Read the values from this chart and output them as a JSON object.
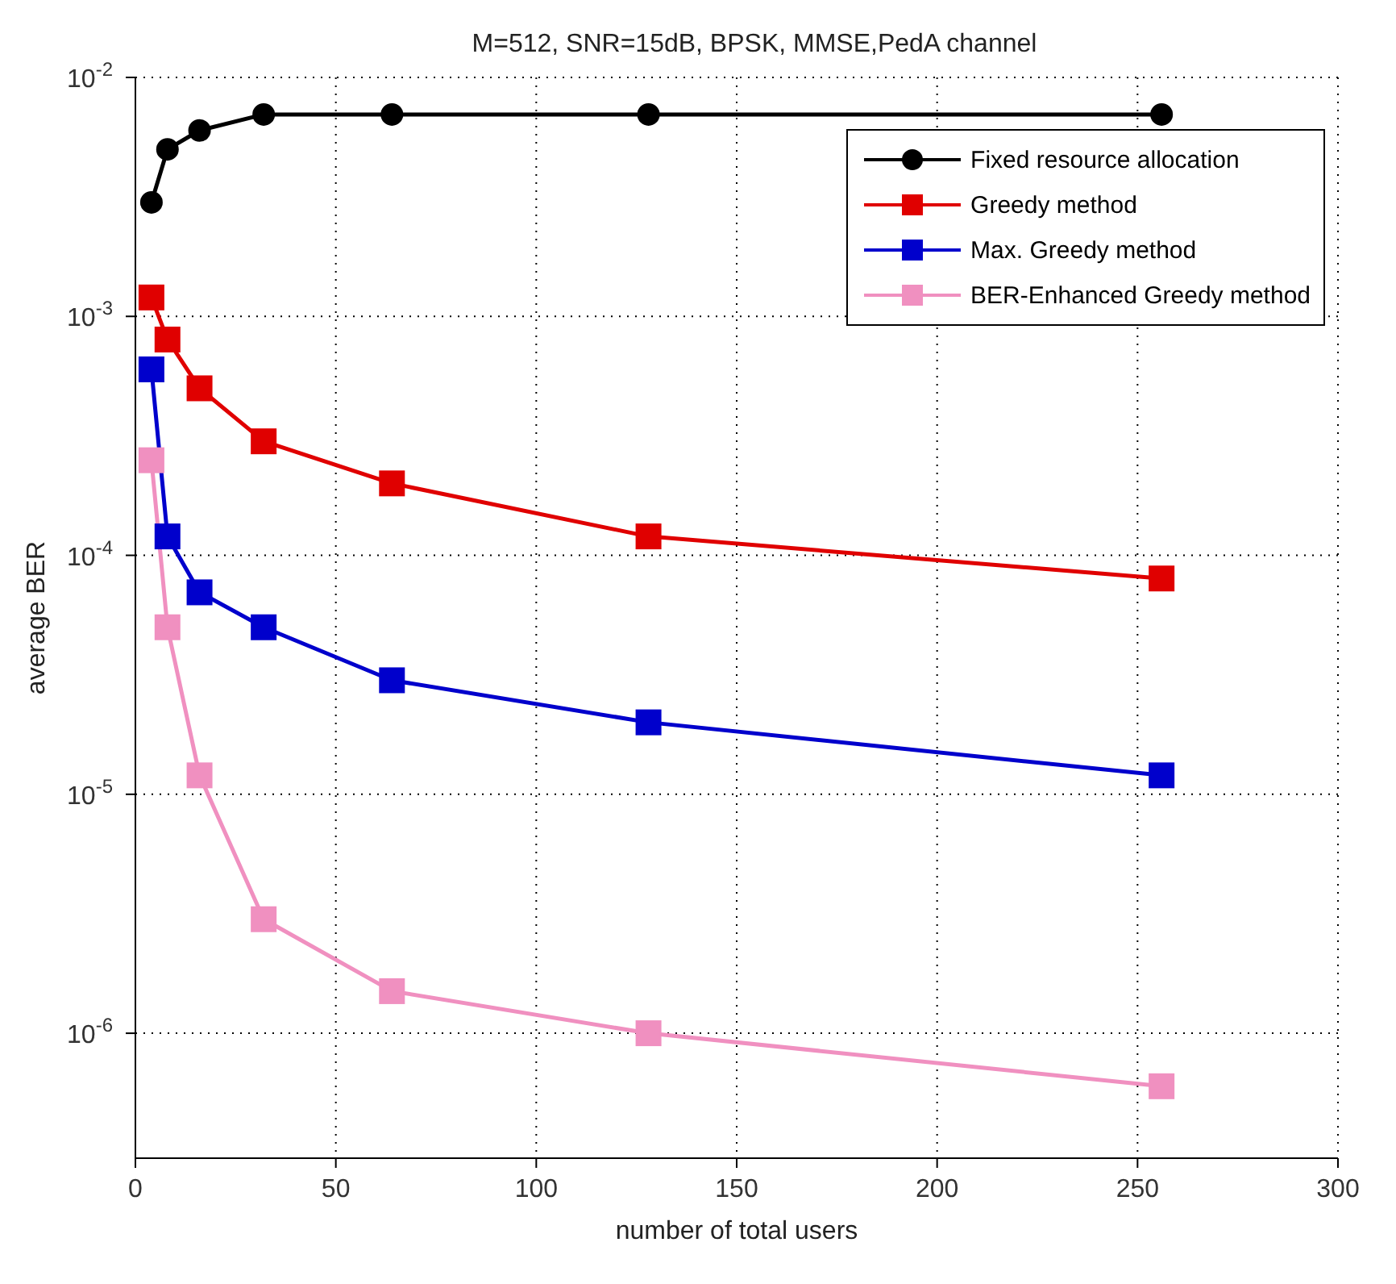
{
  "chart_data": {
    "type": "line",
    "title": "M=512, SNR=15dB, BPSK, MMSE,PedA channel",
    "xlabel": "number of total users",
    "ylabel": "average BER",
    "x": [
      4,
      8,
      16,
      32,
      64,
      128,
      256
    ],
    "series": [
      {
        "name": "Fixed resource allocation",
        "color": "#000000",
        "marker": "circle",
        "values": [
          0.003,
          0.005,
          0.006,
          0.007,
          0.007,
          0.007,
          0.007
        ]
      },
      {
        "name": "Greedy method",
        "color": "#e00000",
        "marker": "square",
        "values": [
          0.0012,
          0.0008,
          0.0005,
          0.0003,
          0.0002,
          0.00012,
          8e-05
        ]
      },
      {
        "name": "Max. Greedy method",
        "color": "#0000cc",
        "marker": "square",
        "values": [
          0.0006,
          0.00012,
          7e-05,
          5e-05,
          3e-05,
          2e-05,
          1.2e-05
        ]
      },
      {
        "name": "BER-Enhanced Greedy method",
        "color": "#f090c0",
        "marker": "square",
        "values": [
          0.00025,
          5e-05,
          1.2e-05,
          3e-06,
          1.5e-06,
          1e-06,
          6e-07
        ]
      }
    ],
    "log": "y",
    "xlim": [
      0,
      300
    ],
    "xticks": [
      0,
      50,
      100,
      150,
      200,
      250,
      300
    ],
    "ylim": [
      3e-07,
      0.01
    ],
    "yticks": [
      {
        "value": 1e-06,
        "label": "10$^{-6}$"
      },
      {
        "value": 1e-05,
        "label": "10$^{-5}$"
      },
      {
        "value": 0.0001,
        "label": "10$^{-4}$"
      },
      {
        "value": 0.001,
        "label": "10$^{-3}$"
      },
      {
        "value": 0.01,
        "label": "10$^{-2}$"
      }
    ],
    "grid": true,
    "legend": "top right",
    "line_style": "solid"
  }
}
